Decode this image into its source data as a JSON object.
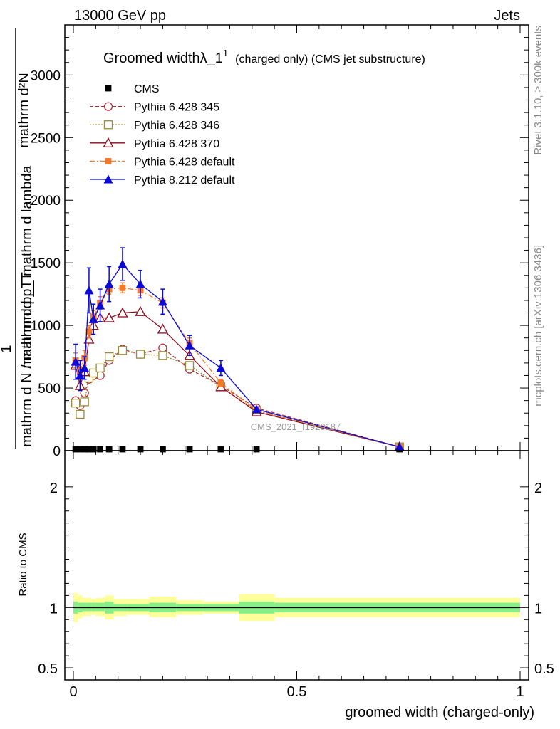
{
  "header": {
    "left": "13000 GeV pp",
    "right": "Jets"
  },
  "side": {
    "rivet": "Rivet 3.1.10, ≥ 300k events",
    "mcplots": "mcplots.cern.ch [arXiv:1306.3436]"
  },
  "colors": {
    "cms": "#000000",
    "p345": "#b0303a",
    "p346": "#9a8a3a",
    "p370": "#8b0a1a",
    "p6def": "#f27a2a",
    "p8def": "#0a0ad8",
    "band_outer": "#ffff99",
    "band_inner": "#88ee88"
  },
  "chart_data": [
    {
      "type": "line",
      "title": "Groomed widthλ_1",
      "title_sup": "1",
      "title_suffix": "(charged only) (CMS jet substructure)",
      "ylabel_top": "mathrm d²N",
      "ylabel_bottom": "mathrm d p_T mathrm d lambda",
      "ylabel_one": "1",
      "ylabel_ratio": "mathrm d N / mathrm d p_T",
      "watermark": "CMS_2021_I1920187",
      "xlim": [
        -0.02,
        1.01
      ],
      "ylim": [
        0,
        3400
      ],
      "yticks": [
        0,
        500,
        1000,
        1500,
        2000,
        2500,
        3000
      ],
      "ytick_labels": [
        "0",
        "500",
        "1000",
        "1500",
        "2000",
        "2500",
        "3000"
      ],
      "legend": [
        "CMS",
        "Pythia 6.428 345",
        "Pythia 6.428 346",
        "Pythia 6.428 370",
        "Pythia 6.428 default",
        "Pythia 8.212 default"
      ],
      "x": [
        0.005,
        0.015,
        0.025,
        0.035,
        0.045,
        0.06,
        0.08,
        0.11,
        0.15,
        0.2,
        0.26,
        0.33,
        0.41,
        0.73
      ],
      "series": [
        {
          "name": "CMS",
          "key": "cms",
          "marker": "square-filled",
          "values": [
            1,
            1,
            1,
            1,
            1,
            1,
            1,
            1,
            1,
            1,
            1,
            1,
            1,
            1
          ]
        },
        {
          "name": "Pythia 6.428 345",
          "key": "p345",
          "marker": "circle-open",
          "dash": "5,3",
          "values": [
            400,
            360,
            460,
            570,
            600,
            600,
            720,
            810,
            770,
            820,
            650,
            520,
            340,
            30
          ]
        },
        {
          "name": "Pythia 6.428 346",
          "key": "p346",
          "marker": "square-open",
          "dash": "2,2",
          "values": [
            380,
            290,
            390,
            580,
            620,
            660,
            750,
            800,
            770,
            760,
            680,
            510,
            320,
            30
          ]
        },
        {
          "name": "Pythia 6.428 370",
          "key": "p370",
          "marker": "triangle-open",
          "dash": "",
          "values": [
            680,
            520,
            630,
            890,
            1000,
            1060,
            1060,
            1100,
            1110,
            970,
            760,
            510,
            310,
            30
          ]
        },
        {
          "name": "Pythia 6.428 default",
          "key": "p6def",
          "marker": "square-filled",
          "dash": "7,3,2,3",
          "values": [
            720,
            640,
            740,
            950,
            1070,
            1180,
            1290,
            1300,
            1280,
            1180,
            860,
            540,
            320,
            30
          ],
          "errors": [
            60,
            50,
            60,
            50,
            50,
            50,
            40,
            40,
            40,
            40,
            40,
            30,
            20,
            5
          ]
        },
        {
          "name": "Pythia 8.212 default",
          "key": "p8def",
          "marker": "triangle-filled",
          "dash": "",
          "values": [
            710,
            600,
            660,
            1280,
            1050,
            1160,
            1330,
            1490,
            1330,
            1190,
            840,
            660,
            330,
            30
          ],
          "errors": [
            140,
            120,
            90,
            180,
            120,
            130,
            140,
            130,
            110,
            100,
            80,
            60,
            20,
            5
          ]
        }
      ]
    },
    {
      "type": "area",
      "ylabel": "Ratio to CMS",
      "xlabel": "groomed width (charged-only)",
      "ylim": [
        0.4,
        2.3
      ],
      "yticks": [
        0.5,
        1,
        2
      ],
      "ytick_labels": [
        "0.5",
        "1",
        "2"
      ],
      "xticks": [
        0,
        0.5,
        1
      ],
      "xtick_labels": [
        "0",
        "0.5",
        "1"
      ],
      "bins": [
        0,
        0.01,
        0.02,
        0.03,
        0.04,
        0.05,
        0.07,
        0.09,
        0.12,
        0.17,
        0.23,
        0.29,
        0.37,
        0.45,
        1.0
      ],
      "outer_low": [
        0.88,
        0.91,
        0.93,
        0.93,
        0.94,
        0.93,
        0.9,
        0.93,
        0.94,
        0.92,
        0.94,
        0.95,
        0.89,
        0.92
      ],
      "outer_high": [
        1.12,
        1.1,
        1.08,
        1.08,
        1.07,
        1.08,
        1.1,
        1.07,
        1.07,
        1.09,
        1.06,
        1.05,
        1.11,
        1.08
      ],
      "inner_low": [
        0.95,
        0.96,
        0.97,
        0.97,
        0.97,
        0.97,
        0.95,
        0.97,
        0.97,
        0.96,
        0.97,
        0.97,
        0.95,
        0.96
      ],
      "inner_high": [
        1.05,
        1.04,
        1.04,
        1.04,
        1.04,
        1.04,
        1.05,
        1.03,
        1.03,
        1.04,
        1.03,
        1.03,
        1.05,
        1.04
      ]
    }
  ]
}
